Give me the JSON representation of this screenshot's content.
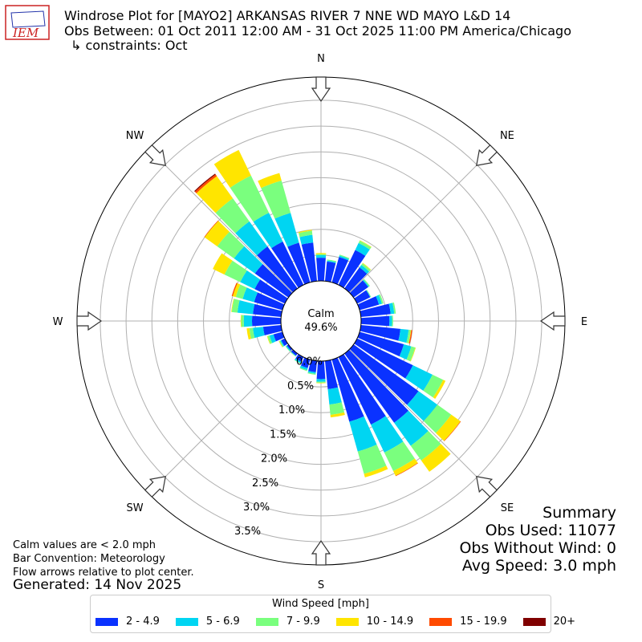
{
  "header": {
    "title_line1": "Windrose Plot for [MAYO2] ARKANSAS RIVER 7 NNE WD MAYO L&D 14",
    "title_line2": "Obs Between: 01 Oct 2011 12:00 AM - 31 Oct 2025 11:00 PM America/Chicago",
    "title_line3": "↳ constraints: Oct",
    "logo_text": "IEM"
  },
  "summary": {
    "heading": "Summary",
    "obs_used": "Obs Used: 11077",
    "obs_without_wind": "Obs Without Wind: 0",
    "avg_speed": "Avg Speed: 3.0 mph"
  },
  "notes": {
    "calm_note": "Calm values are < 2.0 mph",
    "bar_convention": "Bar Convention: Meteorology",
    "flow_arrows": "Flow arrows relative to plot center.",
    "generated": "Generated: 14 Nov 2025"
  },
  "calm": {
    "label": "Calm",
    "value": "49.6%"
  },
  "chart_data": {
    "type": "windrose",
    "units": "percent of observations",
    "radial_ticks": [
      "0.0%",
      "0.5%",
      "1.0%",
      "1.5%",
      "2.0%",
      "2.5%",
      "3.0%",
      "3.5%"
    ],
    "radial_tick_values": [
      0,
      0.5,
      1.0,
      1.5,
      2.0,
      2.5,
      3.0,
      3.5
    ],
    "rmax": 3.95,
    "compass_labels": [
      "N",
      "NE",
      "E",
      "SE",
      "S",
      "SW",
      "W",
      "NW"
    ],
    "legend_title": "Wind Speed [mph]",
    "speed_bins": [
      {
        "label": "2 - 4.9",
        "color": "#0a32ff"
      },
      {
        "label": "5 - 6.9",
        "color": "#00d5f2"
      },
      {
        "label": "7 - 9.9",
        "color": "#7aff7e"
      },
      {
        "label": "10 - 14.9",
        "color": "#ffe500"
      },
      {
        "label": "15 - 19.9",
        "color": "#ff4a00"
      },
      {
        "label": "20+",
        "color": "#800000"
      }
    ],
    "directions_deg": [
      0,
      10,
      20,
      30,
      40,
      50,
      60,
      70,
      80,
      90,
      100,
      110,
      120,
      130,
      140,
      150,
      160,
      170,
      180,
      190,
      200,
      210,
      220,
      230,
      240,
      250,
      260,
      270,
      280,
      290,
      300,
      310,
      320,
      330,
      340,
      350
    ],
    "cumulative": [
      [
        0.45,
        0.5,
        0.52,
        0.54,
        0.54,
        0.54
      ],
      [
        0.38,
        0.4,
        0.42,
        0.42,
        0.42,
        0.42
      ],
      [
        0.51,
        0.54,
        0.56,
        0.56,
        0.56,
        0.56
      ],
      [
        0.75,
        0.9,
        0.95,
        0.96,
        0.96,
        0.96
      ],
      [
        0.5,
        0.56,
        0.6,
        0.61,
        0.61,
        0.61
      ],
      [
        0.35,
        0.37,
        0.39,
        0.39,
        0.39,
        0.39
      ],
      [
        0.28,
        0.29,
        0.3,
        0.3,
        0.3,
        0.3
      ],
      [
        0.39,
        0.45,
        0.48,
        0.48,
        0.48,
        0.48
      ],
      [
        0.58,
        0.65,
        0.68,
        0.68,
        0.68,
        0.68
      ],
      [
        0.55,
        0.6,
        0.62,
        0.62,
        0.62,
        0.62
      ],
      [
        0.77,
        0.93,
        0.97,
        0.98,
        1.0,
        1.0
      ],
      [
        0.89,
        1.04,
        1.12,
        1.13,
        1.13,
        1.13
      ],
      [
        1.2,
        1.62,
        1.85,
        1.9,
        1.9,
        1.9
      ],
      [
        1.55,
        2.0,
        2.33,
        2.55,
        2.56,
        2.56
      ],
      [
        1.65,
        2.2,
        2.55,
        2.82,
        2.82,
        2.82
      ],
      [
        1.45,
        2.05,
        2.45,
        2.55,
        2.56,
        2.56
      ],
      [
        1.25,
        1.85,
        2.3,
        2.37,
        2.37,
        2.37
      ],
      [
        0.55,
        0.85,
        1.05,
        1.1,
        1.1,
        1.1
      ],
      [
        0.35,
        0.4,
        0.42,
        0.43,
        0.43,
        0.43
      ],
      [
        0.22,
        0.25,
        0.27,
        0.27,
        0.27,
        0.27
      ],
      [
        0.17,
        0.21,
        0.23,
        0.23,
        0.23,
        0.23
      ],
      [
        0.1,
        0.13,
        0.14,
        0.14,
        0.14,
        0.14
      ],
      [
        0.05,
        0.06,
        0.07,
        0.07,
        0.07,
        0.07
      ],
      [
        0.04,
        0.06,
        0.07,
        0.07,
        0.07,
        0.07
      ],
      [
        0.08,
        0.1,
        0.12,
        0.13,
        0.13,
        0.13
      ],
      [
        0.18,
        0.26,
        0.3,
        0.31,
        0.31,
        0.31
      ],
      [
        0.35,
        0.55,
        0.62,
        0.67,
        0.67,
        0.67
      ],
      [
        0.56,
        0.72,
        0.77,
        0.78,
        0.78,
        0.78
      ],
      [
        0.55,
        0.85,
        0.96,
        0.97,
        0.97,
        0.97
      ],
      [
        0.57,
        0.8,
        0.94,
        1.0,
        1.02,
        1.02
      ],
      [
        0.65,
        0.96,
        1.3,
        1.55,
        1.55,
        1.55
      ],
      [
        0.8,
        1.3,
        1.7,
        2.0,
        2.01,
        2.01
      ],
      [
        1.0,
        1.6,
        2.15,
        2.68,
        2.72,
        2.74
      ],
      [
        0.93,
        1.55,
        2.35,
        2.9,
        2.9,
        2.9
      ],
      [
        0.8,
        1.4,
        2.05,
        2.2,
        2.2,
        2.2
      ],
      [
        0.75,
        0.9,
        0.98,
        1.0,
        1.0,
        1.0
      ]
    ]
  }
}
